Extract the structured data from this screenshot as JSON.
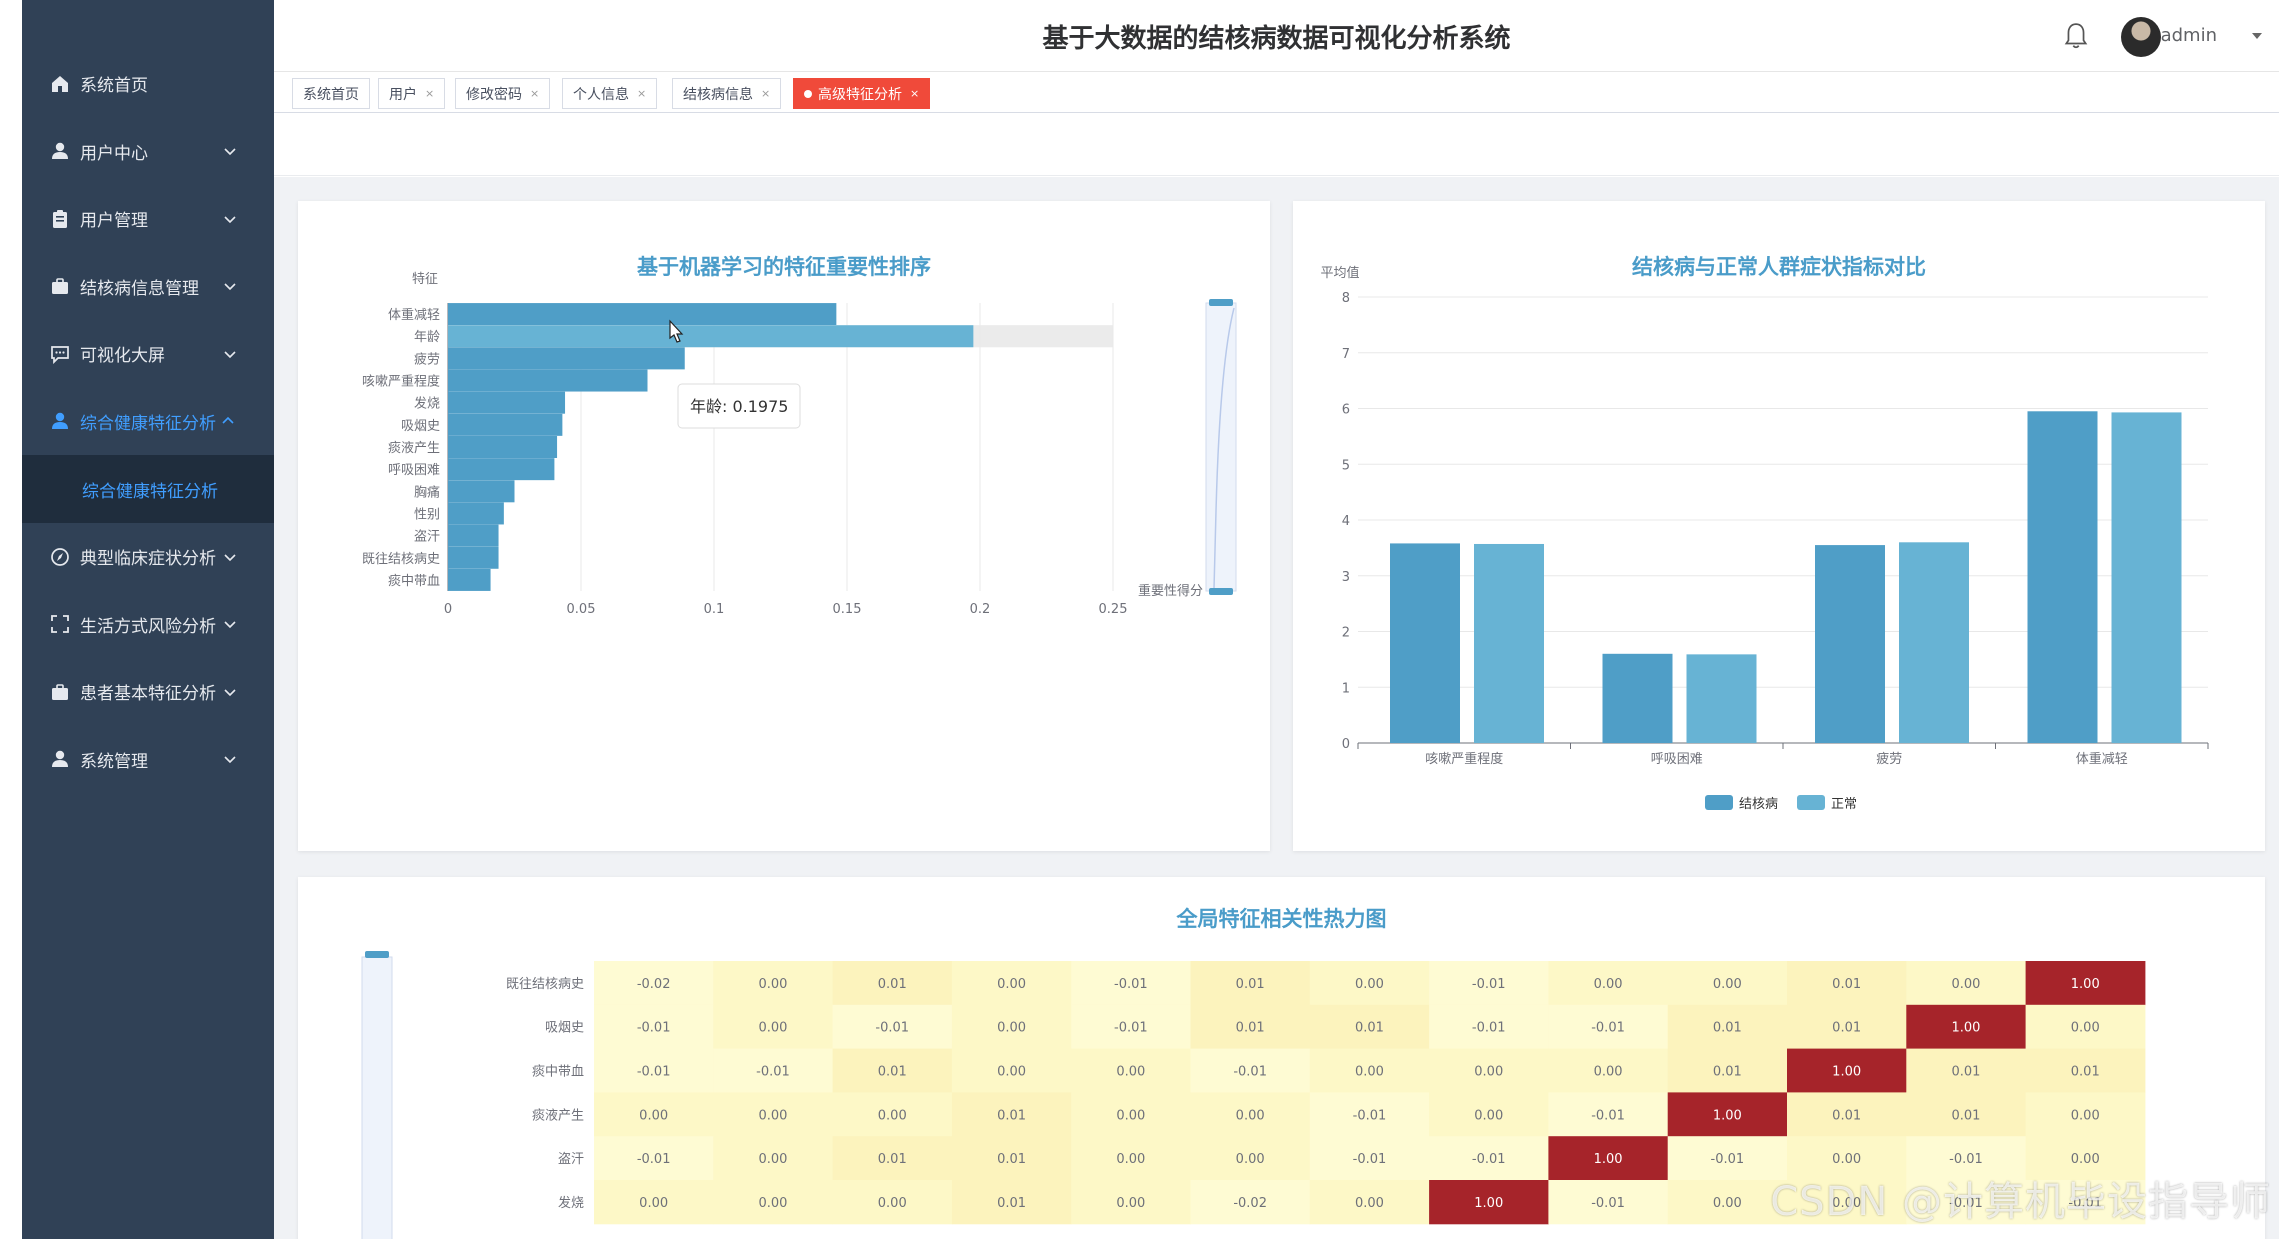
{
  "header": {
    "title": "基于大数据的结核病数据可视化分析系统",
    "user": "admin"
  },
  "sidebar": {
    "items": [
      {
        "label": "系统首页",
        "icon": "home-icon",
        "expandable": false
      },
      {
        "label": "用户中心",
        "icon": "user-icon",
        "expandable": true
      },
      {
        "label": "用户管理",
        "icon": "clipboard-icon",
        "expandable": true
      },
      {
        "label": "结核病信息管理",
        "icon": "briefcase-icon",
        "expandable": true
      },
      {
        "label": "可视化大屏",
        "icon": "chat-icon",
        "expandable": true
      },
      {
        "label": "综合健康特征分析",
        "icon": "user-icon",
        "expandable": true,
        "active": true
      },
      {
        "label": "典型临床症状分析",
        "icon": "compass-icon",
        "expandable": true
      },
      {
        "label": "生活方式风险分析",
        "icon": "fullscreen-icon",
        "expandable": true
      },
      {
        "label": "患者基本特征分析",
        "icon": "briefcase-icon",
        "expandable": true
      },
      {
        "label": "系统管理",
        "icon": "user-icon",
        "expandable": true
      }
    ],
    "submenu_label": "综合健康特征分析"
  },
  "tags": [
    {
      "label": "系统首页",
      "closable": false
    },
    {
      "label": "用户",
      "closable": true
    },
    {
      "label": "修改密码",
      "closable": true
    },
    {
      "label": "个人信息",
      "closable": true
    },
    {
      "label": "结核病信息",
      "closable": true
    },
    {
      "label": "高级特征分析",
      "closable": true,
      "active": true
    }
  ],
  "close_glyph": "×",
  "colors": {
    "bar": "#4f9ec7",
    "bar_highlight": "#67b3d4",
    "series_tb": "#4f9ec7",
    "series_normal": "#67b3d4",
    "heat_low": "#fdf8c7",
    "heat_high": "#a6242a",
    "sidebar_bg": "#304156",
    "accent": "#409eff",
    "tag_active": "#f04a3a"
  },
  "chart_data": [
    {
      "type": "bar",
      "orientation": "horizontal",
      "title": "基于机器学习的特征重要性排序",
      "ylabel": "特征",
      "xlabel": "重要性得分",
      "xlim": [
        0,
        0.25
      ],
      "xticks": [
        "0",
        "0.05",
        "0.1",
        "0.15",
        "0.2",
        "0.25"
      ],
      "categories": [
        "体重减轻",
        "年龄",
        "疲劳",
        "咳嗽严重程度",
        "发烧",
        "吸烟史",
        "痰液产生",
        "呼吸困难",
        "胸痛",
        "性别",
        "盗汗",
        "既往结核病史",
        "痰中带血"
      ],
      "values": [
        0.146,
        0.1975,
        0.089,
        0.075,
        0.044,
        0.043,
        0.041,
        0.04,
        0.025,
        0.021,
        0.019,
        0.019,
        0.016
      ],
      "tooltip": {
        "label": "年龄: 0.1975"
      },
      "highlighted": "年龄"
    },
    {
      "type": "bar",
      "title": "结核病与正常人群症状指标对比",
      "ylabel": "平均值",
      "ylim": [
        0,
        8
      ],
      "yticks": [
        "0",
        "1",
        "2",
        "3",
        "4",
        "5",
        "6",
        "7",
        "8"
      ],
      "categories": [
        "咳嗽严重程度",
        "呼吸困难",
        "疲劳",
        "体重减轻"
      ],
      "series": [
        {
          "name": "结核病",
          "values": [
            3.58,
            1.6,
            3.55,
            5.95
          ]
        },
        {
          "name": "正常",
          "values": [
            3.57,
            1.59,
            3.6,
            5.93
          ]
        }
      ],
      "legend": "bottom-center"
    },
    {
      "type": "heatmap",
      "title": "全局特征相关性热力图",
      "rows": [
        "既往结核病史",
        "吸烟史",
        "痰中带血",
        "痰液产生",
        "盗汗",
        "发烧"
      ],
      "matrix": [
        [
          "-0.02",
          "0.00",
          "0.01",
          "0.00",
          "-0.01",
          "0.01",
          "0.00",
          "-0.01",
          "0.00",
          "0.00",
          "0.01",
          "0.00",
          "1.00"
        ],
        [
          "-0.01",
          "0.00",
          "-0.01",
          "0.00",
          "-0.01",
          "0.01",
          "0.01",
          "-0.01",
          "-0.01",
          "0.01",
          "0.01",
          "1.00",
          "0.00"
        ],
        [
          "-0.01",
          "-0.01",
          "0.01",
          "0.00",
          "0.00",
          "-0.01",
          "0.00",
          "0.00",
          "0.00",
          "0.01",
          "1.00",
          "0.01",
          "0.01"
        ],
        [
          "0.00",
          "0.00",
          "0.00",
          "0.01",
          "0.00",
          "0.00",
          "-0.01",
          "0.00",
          "-0.01",
          "1.00",
          "0.01",
          "0.01",
          "0.00"
        ],
        [
          "-0.01",
          "0.00",
          "0.01",
          "0.01",
          "0.00",
          "0.00",
          "-0.01",
          "-0.01",
          "1.00",
          "-0.01",
          "0.00",
          "-0.01",
          "0.00"
        ],
        [
          "0.00",
          "0.00",
          "0.00",
          "0.01",
          "0.00",
          "-0.02",
          "0.00",
          "1.00",
          "-0.01",
          "0.00",
          "0.00",
          "-0.01",
          "-0.01"
        ]
      ]
    }
  ],
  "watermark": "CSDN @计算机毕设指导师"
}
